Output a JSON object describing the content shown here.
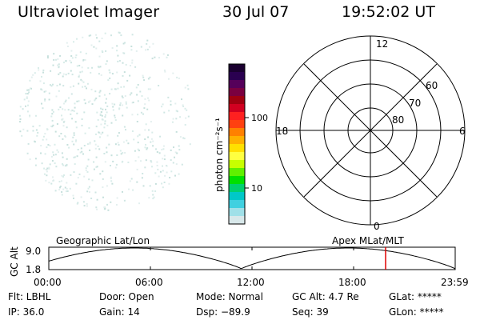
{
  "header": {
    "title": "Ultraviolet Imager",
    "date": "30 Jul 07",
    "time": "19:52:02 UT"
  },
  "colorbar": {
    "label": "photon cm⁻²s⁻¹",
    "ticks": [
      {
        "label": "100",
        "value": 100
      },
      {
        "label": "10",
        "value": 10
      }
    ],
    "colors": [
      "#1a0030",
      "#2a0050",
      "#55005a",
      "#7a0040",
      "#a00010",
      "#d10020",
      "#ff2020",
      "#ff4010",
      "#ff8000",
      "#ffb000",
      "#ffe000",
      "#ffff40",
      "#c8ff00",
      "#60f000",
      "#00e000",
      "#00d070",
      "#00c8c8",
      "#40d0e0",
      "#a0e0e8",
      "#d8e8ea"
    ]
  },
  "polar_plot": {
    "hour_labels": [
      {
        "label": "12",
        "pos": "top"
      },
      {
        "label": "18",
        "pos": "left"
      },
      {
        "label": "6",
        "pos": "right"
      },
      {
        "label": "0",
        "pos": "bottom"
      }
    ],
    "lat_labels": [
      "60",
      "70",
      "80"
    ]
  },
  "timeline": {
    "left_label": "Geographic Lat/Lon",
    "right_label": "Apex MLat/MLT",
    "axis_label": "GC Alt",
    "y_ticks": [
      "9.0",
      "1.8"
    ],
    "x_ticks": [
      "00:00",
      "06:00",
      "12:00",
      "18:00",
      "23:59"
    ],
    "marker_color": "#e00000"
  },
  "footer": {
    "filter": "Flt: LBHL",
    "door": "Door: Open",
    "mode": "Mode: Normal",
    "gc_alt": "GC Alt: 4.7 Re",
    "glat": "GLat: *****",
    "ip": "IP: 36.0",
    "gain": "Gain: 14",
    "dsp": "Dsp:  −89.9",
    "seq": "Seq: 39",
    "glon": "GLon: *****"
  }
}
